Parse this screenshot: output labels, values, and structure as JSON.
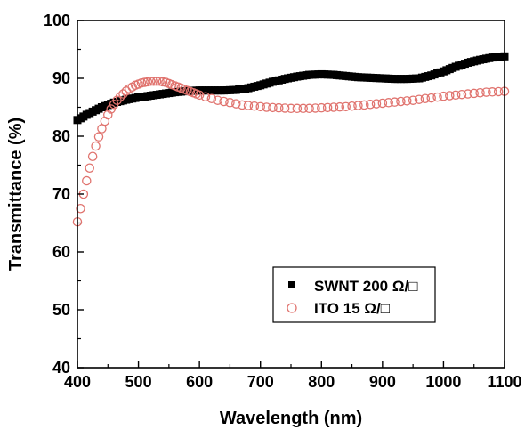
{
  "chart_data": {
    "type": "scatter",
    "xlabel": "Wavelength (nm)",
    "ylabel": "Transmittance (%)",
    "xlim": [
      400,
      1100
    ],
    "ylim": [
      40,
      100
    ],
    "x_ticks": [
      400,
      500,
      600,
      700,
      800,
      900,
      1000,
      1100
    ],
    "y_ticks": [
      40,
      50,
      60,
      70,
      80,
      90,
      100
    ],
    "grid": false,
    "legend_position": "lower-right",
    "series": [
      {
        "name": "SWNT 200 Ω/□",
        "marker": "filled-square",
        "color": "#000000",
        "points": [
          [
            400,
            82.8
          ],
          [
            420,
            84.0
          ],
          [
            440,
            85.0
          ],
          [
            460,
            85.8
          ],
          [
            480,
            86.3
          ],
          [
            500,
            86.7
          ],
          [
            520,
            87.0
          ],
          [
            540,
            87.3
          ],
          [
            560,
            87.6
          ],
          [
            580,
            87.8
          ],
          [
            600,
            87.9
          ],
          [
            620,
            87.9
          ],
          [
            640,
            87.9
          ],
          [
            660,
            88.0
          ],
          [
            680,
            88.3
          ],
          [
            700,
            88.8
          ],
          [
            720,
            89.4
          ],
          [
            740,
            89.9
          ],
          [
            760,
            90.3
          ],
          [
            780,
            90.6
          ],
          [
            800,
            90.7
          ],
          [
            820,
            90.6
          ],
          [
            840,
            90.4
          ],
          [
            860,
            90.2
          ],
          [
            880,
            90.1
          ],
          [
            900,
            90.0
          ],
          [
            920,
            89.9
          ],
          [
            940,
            89.9
          ],
          [
            960,
            90.0
          ],
          [
            980,
            90.5
          ],
          [
            1000,
            91.2
          ],
          [
            1020,
            92.0
          ],
          [
            1040,
            92.7
          ],
          [
            1060,
            93.2
          ],
          [
            1080,
            93.6
          ],
          [
            1100,
            93.8
          ]
        ]
      },
      {
        "name": "ITO 15 Ω/□",
        "marker": "open-circle",
        "color": "#e0736e",
        "points": [
          [
            400,
            65.2
          ],
          [
            405,
            67.5
          ],
          [
            410,
            70.0
          ],
          [
            415,
            72.3
          ],
          [
            420,
            74.5
          ],
          [
            425,
            76.5
          ],
          [
            430,
            78.3
          ],
          [
            435,
            79.9
          ],
          [
            440,
            81.3
          ],
          [
            445,
            82.6
          ],
          [
            450,
            83.7
          ],
          [
            455,
            84.7
          ],
          [
            460,
            85.5
          ],
          [
            465,
            86.2
          ],
          [
            470,
            86.8
          ],
          [
            475,
            87.3
          ],
          [
            480,
            87.8
          ],
          [
            485,
            88.2
          ],
          [
            490,
            88.5
          ],
          [
            495,
            88.8
          ],
          [
            500,
            89.0
          ],
          [
            505,
            89.2
          ],
          [
            510,
            89.3
          ],
          [
            515,
            89.4
          ],
          [
            520,
            89.5
          ],
          [
            525,
            89.5
          ],
          [
            530,
            89.5
          ],
          [
            535,
            89.5
          ],
          [
            540,
            89.4
          ],
          [
            545,
            89.3
          ],
          [
            550,
            89.1
          ],
          [
            555,
            88.9
          ],
          [
            560,
            88.7
          ],
          [
            565,
            88.5
          ],
          [
            570,
            88.3
          ],
          [
            575,
            88.1
          ],
          [
            580,
            87.9
          ],
          [
            585,
            87.7
          ],
          [
            590,
            87.5
          ],
          [
            595,
            87.3
          ],
          [
            600,
            87.1
          ],
          [
            610,
            86.8
          ],
          [
            620,
            86.5
          ],
          [
            630,
            86.2
          ],
          [
            640,
            86.0
          ],
          [
            650,
            85.8
          ],
          [
            660,
            85.6
          ],
          [
            670,
            85.4
          ],
          [
            680,
            85.3
          ],
          [
            690,
            85.2
          ],
          [
            700,
            85.1
          ],
          [
            710,
            85.0
          ],
          [
            720,
            84.95
          ],
          [
            730,
            84.9
          ],
          [
            740,
            84.85
          ],
          [
            750,
            84.8
          ],
          [
            760,
            84.8
          ],
          [
            770,
            84.8
          ],
          [
            780,
            84.8
          ],
          [
            790,
            84.85
          ],
          [
            800,
            84.9
          ],
          [
            810,
            84.95
          ],
          [
            820,
            85.0
          ],
          [
            830,
            85.05
          ],
          [
            840,
            85.1
          ],
          [
            850,
            85.2
          ],
          [
            860,
            85.3
          ],
          [
            870,
            85.4
          ],
          [
            880,
            85.5
          ],
          [
            890,
            85.6
          ],
          [
            900,
            85.7
          ],
          [
            910,
            85.8
          ],
          [
            920,
            85.9
          ],
          [
            930,
            86.0
          ],
          [
            940,
            86.1
          ],
          [
            950,
            86.2
          ],
          [
            960,
            86.35
          ],
          [
            970,
            86.5
          ],
          [
            980,
            86.6
          ],
          [
            990,
            86.75
          ],
          [
            1000,
            86.9
          ],
          [
            1010,
            87.0
          ],
          [
            1020,
            87.1
          ],
          [
            1030,
            87.2
          ],
          [
            1040,
            87.3
          ],
          [
            1050,
            87.4
          ],
          [
            1060,
            87.5
          ],
          [
            1070,
            87.6
          ],
          [
            1080,
            87.65
          ],
          [
            1090,
            87.7
          ],
          [
            1100,
            87.75
          ]
        ]
      }
    ]
  }
}
